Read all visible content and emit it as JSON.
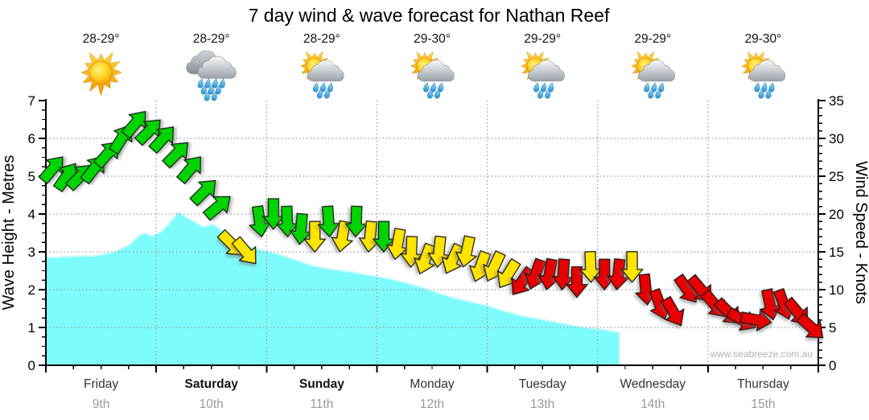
{
  "title": "7 day wind & wave forecast for Nathan Reef",
  "watermark": "www.seabreeze.com.au",
  "header": {
    "days": [
      {
        "name": "Friday",
        "date": "9th",
        "temp": "28-29°",
        "icon": "sun-icon",
        "emphasis": false
      },
      {
        "name": "Saturday",
        "date": "10th",
        "temp": "28-29°",
        "icon": "rain-clouds-icon",
        "emphasis": true
      },
      {
        "name": "Sunday",
        "date": "11th",
        "temp": "28-29°",
        "icon": "sun-cloud-rain-icon",
        "emphasis": true
      },
      {
        "name": "Monday",
        "date": "12th",
        "temp": "29-30°",
        "icon": "sun-cloud-rain-icon",
        "emphasis": false
      },
      {
        "name": "Tuesday",
        "date": "13th",
        "temp": "29-29°",
        "icon": "sun-cloud-rain-icon",
        "emphasis": false
      },
      {
        "name": "Wednesday",
        "date": "14th",
        "temp": "29-29°",
        "icon": "sun-cloud-rain-icon",
        "emphasis": false
      },
      {
        "name": "Thursday",
        "date": "15th",
        "temp": "29-30°",
        "icon": "sun-cloud-rain-icon",
        "emphasis": false
      }
    ]
  },
  "chart_data": {
    "type": "area",
    "title": "7 day wind & wave forecast for Nathan Reef",
    "x_categories": [
      "Friday 9th",
      "Saturday 10th",
      "Sunday 11th",
      "Monday 12th",
      "Tuesday 13th",
      "Wednesday 14th",
      "Thursday 15th"
    ],
    "left_axis": {
      "label": "Wave Height - Metres",
      "min": 0,
      "max": 7,
      "major_tick": 1,
      "minor_tick": 0.25
    },
    "right_axis": {
      "label": "Wind Speed - Knots",
      "min": 0,
      "max": 35,
      "major_tick": 5,
      "minor_tick": 1
    },
    "grid": {
      "horizontal_at_metres": [
        1,
        2,
        3,
        4,
        5,
        6
      ],
      "vertical_at_day_boundaries": [
        1,
        2,
        3,
        4,
        5,
        6
      ],
      "style": "dotted"
    },
    "wave_height_m": {
      "units": "metres",
      "ends_at_day": 5.2,
      "points": [
        [
          0.0,
          2.85
        ],
        [
          0.2,
          2.88
        ],
        [
          0.45,
          2.9
        ],
        [
          0.62,
          3.0
        ],
        [
          0.75,
          3.18
        ],
        [
          0.85,
          3.45
        ],
        [
          0.9,
          3.5
        ],
        [
          0.96,
          3.42
        ],
        [
          1.05,
          3.55
        ],
        [
          1.13,
          3.8
        ],
        [
          1.2,
          4.05
        ],
        [
          1.3,
          3.88
        ],
        [
          1.42,
          3.67
        ],
        [
          1.52,
          3.73
        ],
        [
          1.6,
          3.55
        ],
        [
          1.68,
          3.38
        ],
        [
          1.8,
          3.2
        ],
        [
          1.95,
          3.06
        ],
        [
          2.1,
          2.95
        ],
        [
          2.25,
          2.8
        ],
        [
          2.4,
          2.65
        ],
        [
          2.55,
          2.56
        ],
        [
          2.75,
          2.48
        ],
        [
          2.95,
          2.38
        ],
        [
          3.1,
          2.3
        ],
        [
          3.25,
          2.2
        ],
        [
          3.42,
          2.05
        ],
        [
          3.55,
          1.92
        ],
        [
          3.68,
          1.8
        ],
        [
          3.85,
          1.68
        ],
        [
          4.0,
          1.58
        ],
        [
          4.15,
          1.44
        ],
        [
          4.3,
          1.32
        ],
        [
          4.5,
          1.21
        ],
        [
          4.7,
          1.1
        ],
        [
          4.9,
          1.0
        ],
        [
          5.05,
          0.95
        ],
        [
          5.2,
          0.87
        ]
      ]
    },
    "wind_knots": {
      "units": "knots",
      "interval_hours": 3,
      "point_format": [
        "t_days",
        "speed_knots",
        "direction_deg_pointing",
        "color"
      ],
      "points": [
        [
          0.0625,
          26,
          40,
          "green"
        ],
        [
          0.1875,
          25,
          35,
          "green"
        ],
        [
          0.3125,
          25,
          45,
          "green"
        ],
        [
          0.4375,
          26,
          38,
          "green"
        ],
        [
          0.5625,
          28,
          42,
          "green"
        ],
        [
          0.6875,
          30,
          32,
          "green"
        ],
        [
          0.8125,
          32,
          40,
          "green"
        ],
        [
          0.9375,
          31,
          45,
          "green"
        ],
        [
          1.0625,
          30,
          42,
          "green"
        ],
        [
          1.1875,
          28,
          45,
          "green"
        ],
        [
          1.3125,
          26,
          40,
          "green"
        ],
        [
          1.4375,
          23,
          45,
          "green"
        ],
        [
          1.5625,
          21,
          50,
          "green"
        ],
        [
          1.6875,
          16,
          135,
          "yellow"
        ],
        [
          1.8125,
          15,
          140,
          "yellow"
        ],
        [
          1.9375,
          19,
          172,
          "green"
        ],
        [
          2.0625,
          20,
          180,
          "green"
        ],
        [
          2.1875,
          19,
          178,
          "green"
        ],
        [
          2.3125,
          18,
          185,
          "green"
        ],
        [
          2.4375,
          17,
          180,
          "yellow"
        ],
        [
          2.5625,
          19,
          176,
          "green"
        ],
        [
          2.6875,
          17,
          190,
          "yellow"
        ],
        [
          2.8125,
          19,
          182,
          "green"
        ],
        [
          2.9375,
          17,
          186,
          "yellow"
        ],
        [
          3.0625,
          17,
          180,
          "green"
        ],
        [
          3.1875,
          16,
          190,
          "yellow"
        ],
        [
          3.3125,
          15,
          182,
          "yellow"
        ],
        [
          3.4375,
          14,
          200,
          "yellow"
        ],
        [
          3.5625,
          15,
          186,
          "yellow"
        ],
        [
          3.6875,
          14,
          205,
          "yellow"
        ],
        [
          3.8125,
          15,
          192,
          "yellow"
        ],
        [
          3.9375,
          13,
          200,
          "yellow"
        ],
        [
          4.0625,
          13,
          205,
          "yellow"
        ],
        [
          4.1875,
          12,
          212,
          "yellow"
        ],
        [
          4.3125,
          11,
          215,
          "red"
        ],
        [
          4.4375,
          12,
          200,
          "red"
        ],
        [
          4.5625,
          12,
          190,
          "red"
        ],
        [
          4.6875,
          12,
          184,
          "red"
        ],
        [
          4.8125,
          11,
          180,
          "red"
        ],
        [
          4.9375,
          13,
          178,
          "yellow"
        ],
        [
          5.0625,
          12,
          180,
          "red"
        ],
        [
          5.1875,
          12,
          186,
          "red"
        ],
        [
          5.3125,
          13,
          180,
          "yellow"
        ],
        [
          5.4375,
          10,
          174,
          "red"
        ],
        [
          5.5625,
          8,
          160,
          "red"
        ],
        [
          5.6875,
          7,
          150,
          "red"
        ],
        [
          5.8125,
          10,
          145,
          "red"
        ],
        [
          5.9375,
          10,
          140,
          "red"
        ],
        [
          6.0625,
          8,
          140,
          "red"
        ],
        [
          6.1875,
          7,
          135,
          "red"
        ],
        [
          6.3125,
          6,
          120,
          "red"
        ],
        [
          6.4375,
          6,
          100,
          "red"
        ],
        [
          6.5625,
          8,
          168,
          "red"
        ],
        [
          6.6875,
          8,
          160,
          "red"
        ],
        [
          6.8125,
          7,
          140,
          "red"
        ],
        [
          6.9375,
          5,
          132,
          "red"
        ]
      ]
    },
    "colors": {
      "wave_fill": "#7efcfc",
      "wave_edge": "#d6fbff",
      "arrow_green": "#00d400",
      "arrow_yellow": "#ffe400",
      "arrow_red": "#e60000",
      "arrow_outline": "#1a1a1a",
      "gridline": "#9a9a9a",
      "axis": "#000000",
      "day_name": "#333333",
      "day_date": "#999999",
      "temp_text": "#101020",
      "watermark": "#b3b3b3"
    }
  }
}
